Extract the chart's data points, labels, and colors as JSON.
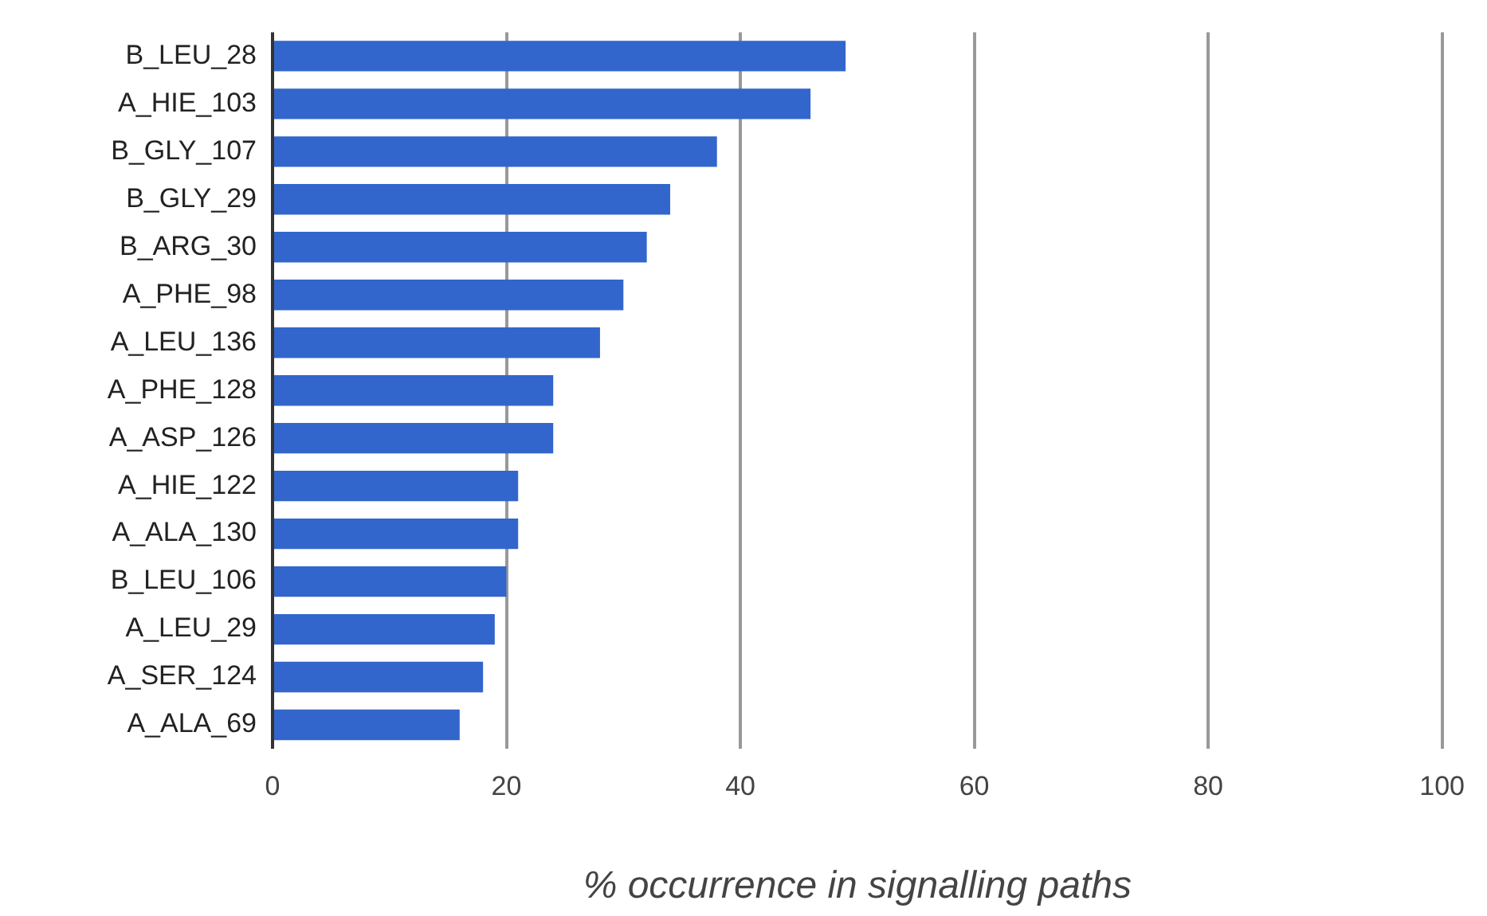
{
  "chart_data": {
    "type": "bar",
    "orientation": "horizontal",
    "xlabel": "% occurrence in signalling paths",
    "categories": [
      "B_LEU_28",
      "A_HIE_103",
      "B_GLY_107",
      "B_GLY_29",
      "B_ARG_30",
      "A_PHE_98",
      "A_LEU_136",
      "A_PHE_128",
      "A_ASP_126",
      "A_HIE_122",
      "A_ALA_130",
      "B_LEU_106",
      "A_LEU_29",
      "A_SER_124",
      "A_ALA_69"
    ],
    "values": [
      49,
      46,
      38,
      34,
      32,
      30,
      28,
      24,
      24,
      21,
      21,
      20,
      19,
      18,
      16
    ],
    "color": "#3366cc",
    "xlim": [
      0,
      100
    ],
    "xticks": [
      0,
      20,
      40,
      60,
      80,
      100
    ],
    "grid": "x",
    "legend": false
  }
}
